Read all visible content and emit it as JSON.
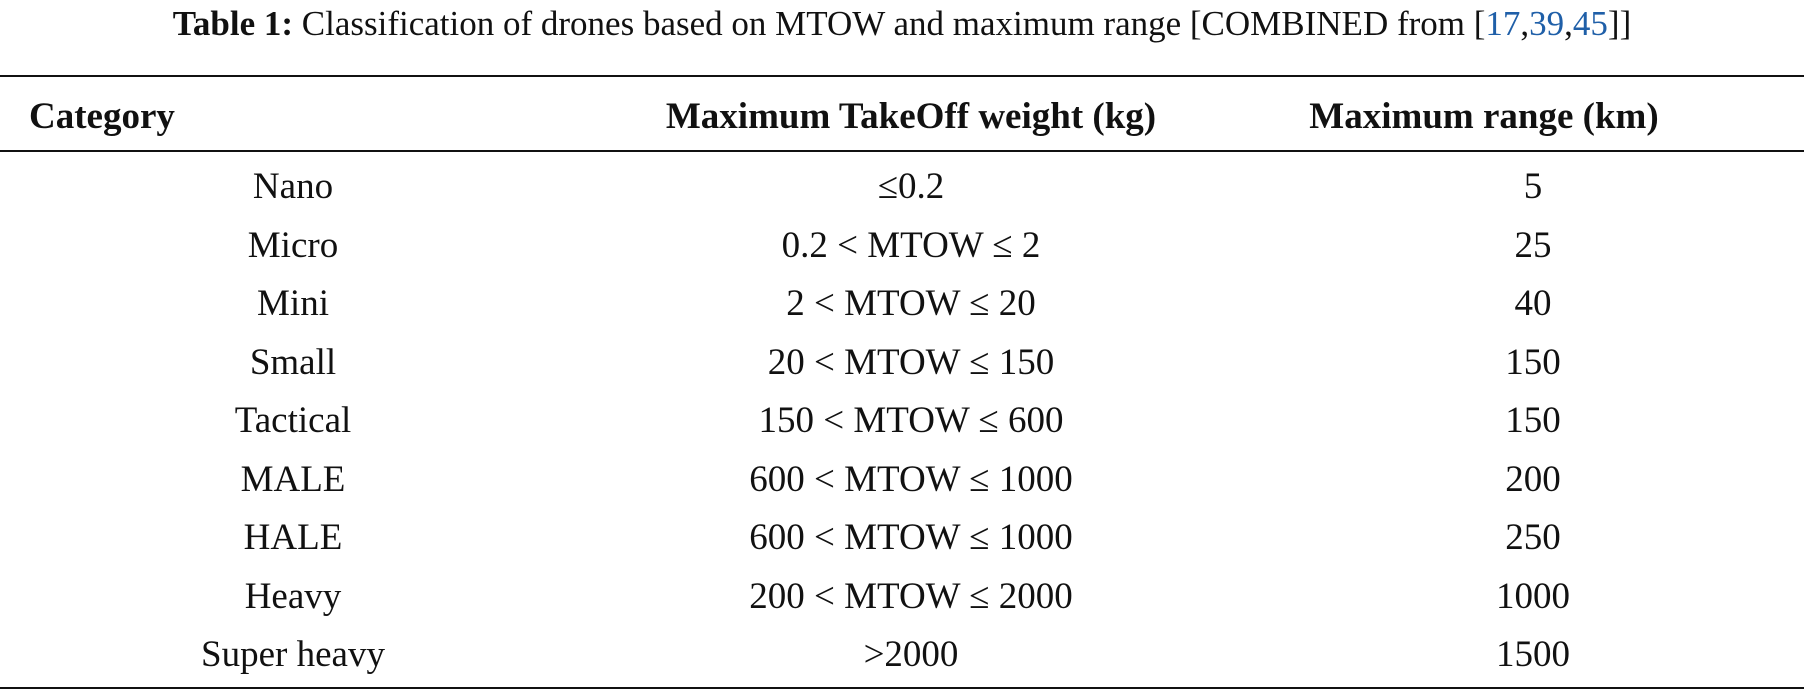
{
  "caption": {
    "label": "Table 1:",
    "text": "Classification of drones based on MTOW and maximum range [COMBINED from [",
    "refs": [
      "17",
      "39",
      "45"
    ],
    "ref_separator": ",",
    "closing": "]]"
  },
  "table": {
    "header": [
      "Category",
      "Maximum TakeOff weight (kg)",
      "Maximum range (km)"
    ],
    "rows": [
      [
        "Nano",
        "≤0.2",
        "5"
      ],
      [
        "Micro",
        "0.2 < MTOW ≤ 2",
        "25"
      ],
      [
        "Mini",
        "2 < MTOW ≤ 20",
        "40"
      ],
      [
        "Small",
        "20 < MTOW ≤ 150",
        "150"
      ],
      [
        "Tactical",
        "150 < MTOW ≤ 600",
        "150"
      ],
      [
        "MALE",
        "600 < MTOW ≤ 1000",
        "200"
      ],
      [
        "HALE",
        "600 < MTOW ≤ 1000",
        "250"
      ],
      [
        "Heavy",
        "200 < MTOW ≤ 2000",
        "1000"
      ],
      [
        "Super heavy",
        ">2000",
        "1500"
      ]
    ]
  }
}
